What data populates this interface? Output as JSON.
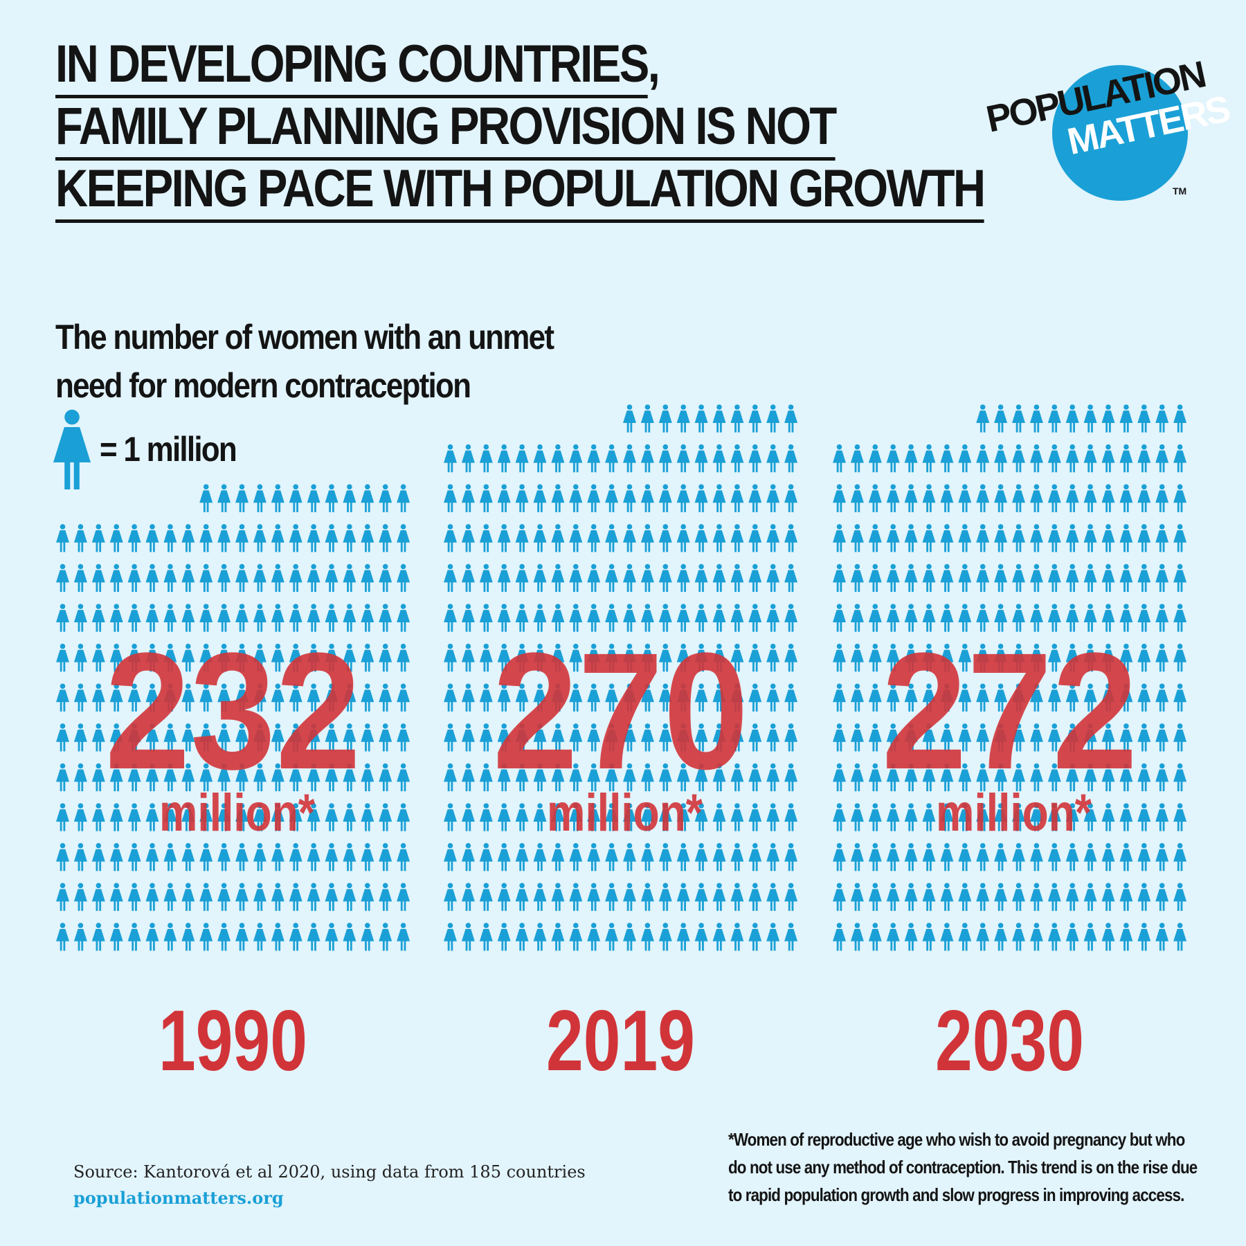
{
  "headline": {
    "line1": "IN DEVELOPING COUNTRIES",
    "line1_tail": ",",
    "line2": "FAMILY PLANNING PROVISION IS NOT",
    "line3": "KEEPING PACE WITH POPULATION GROWTH"
  },
  "subtitle": {
    "line1": "The number of women with an unmet",
    "line2": "need for modern contraception"
  },
  "key": {
    "label": "= 1 million",
    "icon": "woman-icon"
  },
  "logo": {
    "line1": "POPULATION",
    "line2": "MATTERS",
    "tm": "TM"
  },
  "colors": {
    "background": "#e2f4fc",
    "figure": "#1aa0d6",
    "accent": "#d13438",
    "text": "#141414"
  },
  "chart_data": {
    "type": "bar",
    "unit_label": "million*",
    "categories": [
      "1990",
      "2019",
      "2030"
    ],
    "values": [
      232,
      270,
      272
    ],
    "value_labels": [
      "232",
      "270",
      "272"
    ]
  },
  "footnote": "*Women of reproductive age who wish to avoid pregnancy but who do not use any method of contraception. This trend is on the rise due to rapid population growth and slow progress in improving access.",
  "source": {
    "text": "Source: Kantorová et al 2020, using data from 185 countries",
    "url": "populationmatters.org"
  }
}
